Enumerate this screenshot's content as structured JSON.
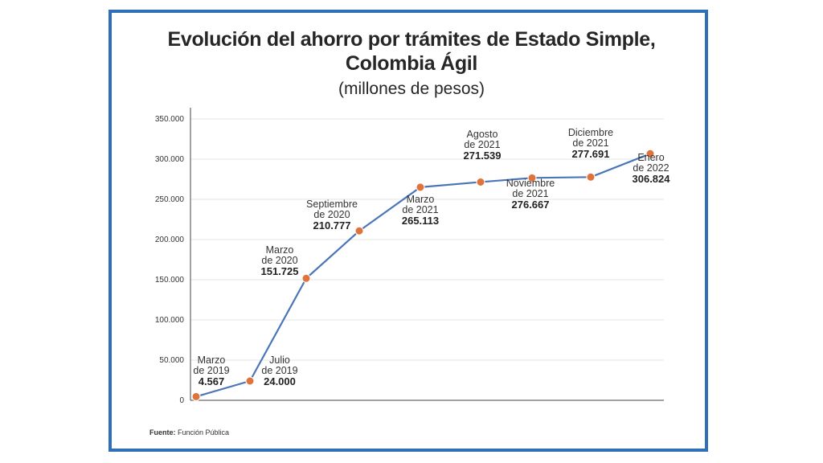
{
  "title_line1": "Evolución del ahorro por trámites de Estado Simple,",
  "title_line2": "Colombia Ágil",
  "subtitle": "(millones de pesos)",
  "source_label": "Fuente:",
  "source_text": "Función Pública",
  "colors": {
    "frame": "#2f6fb7",
    "line": "#4a76b8",
    "marker": "#e0733a",
    "grid": "#e6e6e6"
  },
  "chart_data": {
    "type": "line",
    "title": "Evolución del ahorro por trámites de Estado Simple, Colombia Ágil",
    "subtitle": "(millones de pesos)",
    "ylim": [
      0,
      350000
    ],
    "yticks": [
      "0",
      "50.000",
      "100.000",
      "150.000",
      "200.000",
      "250.000",
      "300.000",
      "350.000"
    ],
    "ytick_values": [
      0,
      50000,
      100000,
      150000,
      200000,
      250000,
      300000,
      350000
    ],
    "grid": true,
    "series": [
      {
        "points": [
          {
            "label_lines": [
              "Marzo",
              "de 2019"
            ],
            "value_label": "4.567",
            "y": 4567
          },
          {
            "label_lines": [
              "Julio",
              "de 2019"
            ],
            "value_label": "24.000",
            "y": 24000
          },
          {
            "label_lines": [
              "Marzo",
              "de 2020"
            ],
            "value_label": "151.725",
            "y": 151725
          },
          {
            "label_lines": [
              "Septiembre",
              "de 2020"
            ],
            "value_label": "210.777",
            "y": 210777
          },
          {
            "label_lines": [
              "Marzo",
              "de 2021"
            ],
            "value_label": "265.113",
            "y": 265113
          },
          {
            "label_lines": [
              "Agosto",
              "de 2021"
            ],
            "value_label": "271.539",
            "y": 271539
          },
          {
            "label_lines": [
              "Noviembre",
              "de 2021"
            ],
            "value_label": "276.667",
            "y": 276667
          },
          {
            "label_lines": [
              "Diciembre",
              "de 2021"
            ],
            "value_label": "277.691",
            "y": 277691
          },
          {
            "label_lines": [
              "Enero",
              "de 2022"
            ],
            "value_label": "306.824",
            "y": 306824
          }
        ]
      }
    ]
  }
}
